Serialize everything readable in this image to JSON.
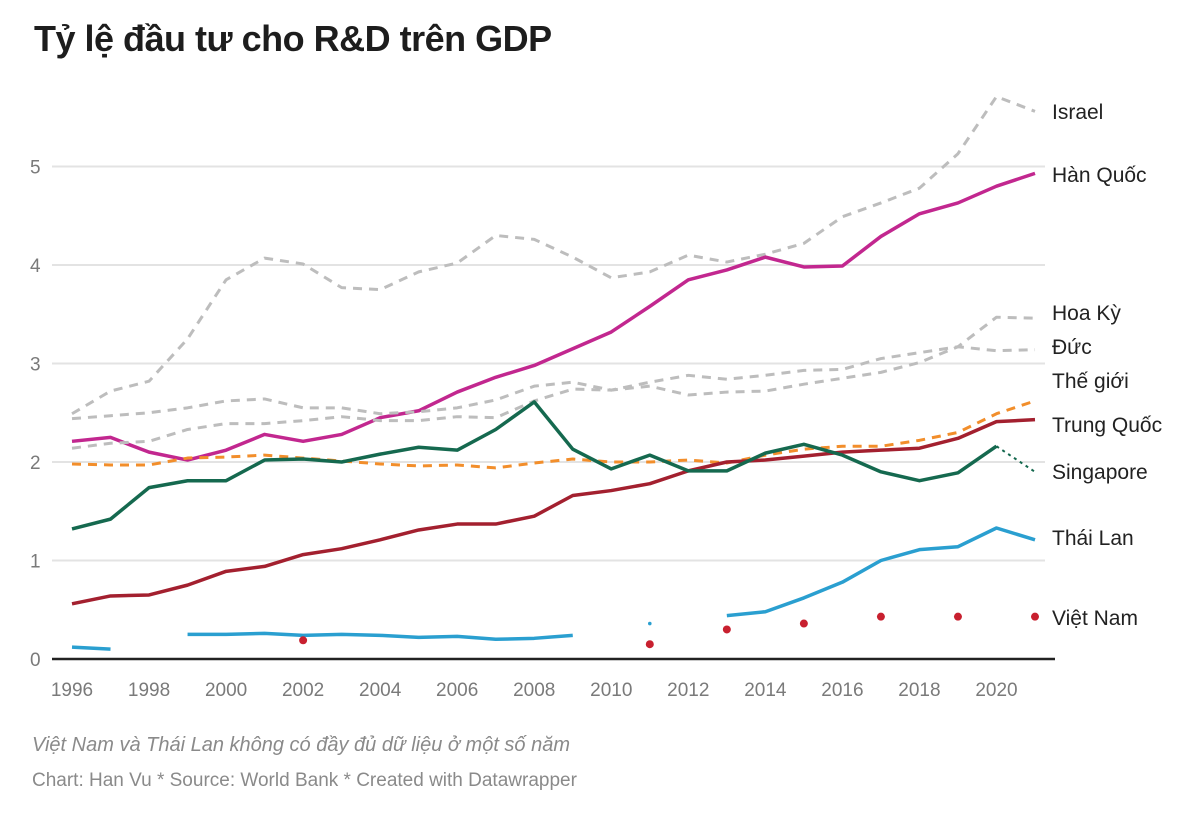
{
  "header": {
    "title": "Tỷ lệ đầu tư cho R&D trên GDP"
  },
  "footer": {
    "note": "Việt Nam và Thái Lan không có đầy đủ dữ liệu ở một số năm",
    "credit": "Chart: Han Vu * Source: World Bank * Created with Datawrapper"
  },
  "chart_data": {
    "type": "line",
    "title": "Tỷ lệ đầu tư cho R&D trên GDP",
    "xlabel": "",
    "ylabel": "",
    "x": [
      1996,
      1997,
      1998,
      1999,
      2000,
      2001,
      2002,
      2003,
      2004,
      2005,
      2006,
      2007,
      2008,
      2009,
      2010,
      2011,
      2012,
      2013,
      2014,
      2015,
      2016,
      2017,
      2018,
      2019,
      2020,
      2021
    ],
    "xlim": [
      1996,
      2021
    ],
    "ylim": [
      0,
      5.8
    ],
    "x_ticks": [
      "1996",
      "1998",
      "2000",
      "2002",
      "2004",
      "2006",
      "2008",
      "2010",
      "2012",
      "2014",
      "2016",
      "2018",
      "2020"
    ],
    "y_ticks": [
      "0",
      "1",
      "2",
      "3",
      "4",
      "5"
    ],
    "grid": true,
    "legend": "direct labels at right",
    "series": [
      {
        "name": "Israel",
        "label": "Israel",
        "color": "#bdbdbd",
        "style": "dashed",
        "values": [
          2.49,
          2.72,
          2.82,
          3.25,
          3.85,
          4.07,
          4.01,
          3.77,
          3.75,
          3.93,
          4.02,
          4.3,
          4.26,
          4.08,
          3.87,
          3.93,
          4.1,
          4.03,
          4.11,
          4.22,
          4.49,
          4.63,
          4.78,
          5.13,
          5.71,
          5.56
        ]
      },
      {
        "name": "Hàn Quốc",
        "label": "Hàn Quốc",
        "color": "#c2278f",
        "style": "solid",
        "values": [
          2.21,
          2.25,
          2.1,
          2.02,
          2.12,
          2.28,
          2.21,
          2.28,
          2.45,
          2.52,
          2.71,
          2.86,
          2.98,
          3.15,
          3.32,
          3.58,
          3.85,
          3.95,
          4.08,
          3.98,
          3.99,
          4.29,
          4.52,
          4.63,
          4.8,
          4.93
        ]
      },
      {
        "name": "Hoa Kỳ",
        "label": "Hoa Kỳ",
        "color": "#bdbdbd",
        "style": "dashed",
        "values": [
          2.44,
          2.47,
          2.5,
          2.55,
          2.62,
          2.64,
          2.55,
          2.55,
          2.49,
          2.51,
          2.55,
          2.63,
          2.77,
          2.81,
          2.73,
          2.77,
          2.68,
          2.71,
          2.72,
          2.79,
          2.85,
          2.91,
          3.01,
          3.17,
          3.47,
          3.46
        ]
      },
      {
        "name": "Đức",
        "label": "Đức",
        "color": "#bdbdbd",
        "style": "dashed",
        "values": [
          2.14,
          2.19,
          2.21,
          2.33,
          2.39,
          2.39,
          2.42,
          2.46,
          2.42,
          2.42,
          2.46,
          2.45,
          2.62,
          2.74,
          2.73,
          2.81,
          2.88,
          2.84,
          2.88,
          2.93,
          2.94,
          3.05,
          3.11,
          3.17,
          3.13,
          3.14
        ]
      },
      {
        "name": "Thế giới",
        "label": "Thế giới",
        "color": "#f28e2b",
        "style": "dashed",
        "values": [
          1.98,
          1.97,
          1.97,
          2.04,
          2.05,
          2.07,
          2.04,
          2.01,
          1.98,
          1.96,
          1.97,
          1.94,
          1.99,
          2.03,
          2.0,
          2.0,
          2.02,
          1.99,
          2.07,
          2.13,
          2.16,
          2.16,
          2.22,
          2.3,
          2.49,
          2.62
        ]
      },
      {
        "name": "Trung Quốc",
        "label": "Trung Quốc",
        "color": "#a3202f",
        "style": "solid",
        "values": [
          0.56,
          0.64,
          0.65,
          0.75,
          0.89,
          0.94,
          1.06,
          1.12,
          1.21,
          1.31,
          1.37,
          1.37,
          1.45,
          1.66,
          1.71,
          1.78,
          1.91,
          2.0,
          2.02,
          2.06,
          2.1,
          2.12,
          2.14,
          2.24,
          2.41,
          2.43
        ]
      },
      {
        "name": "Singapore",
        "label": "Singapore",
        "color": "#15694f",
        "style": "solid",
        "values": [
          1.32,
          1.42,
          1.74,
          1.81,
          1.81,
          2.02,
          2.03,
          2.0,
          2.08,
          2.15,
          2.12,
          2.33,
          2.61,
          2.13,
          1.93,
          2.07,
          1.91,
          1.91,
          2.09,
          2.18,
          2.07,
          1.9,
          1.81,
          1.89,
          2.16,
          null
        ],
        "projected_last": 1.9
      },
      {
        "name": "Thái Lan",
        "label": "Thái Lan",
        "color": "#2a9fd0",
        "style": "solid",
        "values": [
          0.12,
          0.1,
          null,
          0.25,
          0.25,
          0.26,
          0.24,
          0.25,
          0.24,
          0.22,
          0.23,
          0.2,
          0.21,
          0.24,
          null,
          0.36,
          null,
          0.44,
          0.48,
          0.62,
          0.78,
          1.0,
          1.11,
          1.14,
          1.33,
          1.21
        ]
      },
      {
        "name": "Việt Nam",
        "label": "Việt Nam",
        "color": "#c8202f",
        "style": "points",
        "values": [
          null,
          null,
          null,
          null,
          null,
          null,
          0.19,
          null,
          null,
          null,
          null,
          null,
          null,
          null,
          null,
          0.15,
          null,
          0.3,
          null,
          0.36,
          null,
          0.43,
          null,
          0.43,
          null,
          0.43
        ]
      }
    ]
  }
}
